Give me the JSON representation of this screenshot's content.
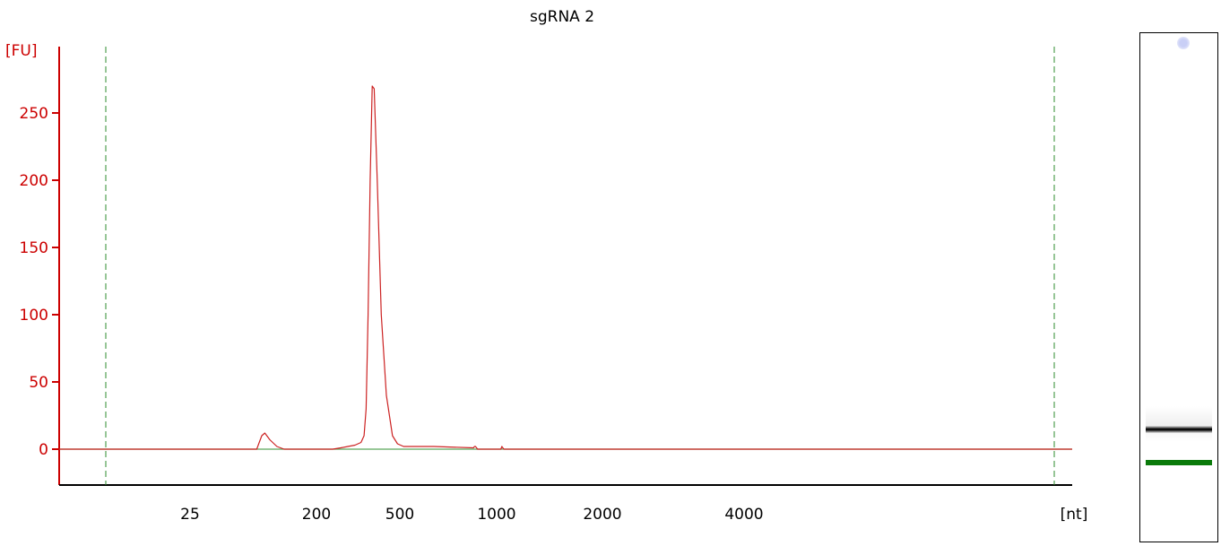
{
  "chart_data": {
    "type": "line",
    "title": "sgRNA 2",
    "ylabel": "[FU]",
    "xlabel": "[nt]",
    "y_ticks": [
      0,
      50,
      100,
      150,
      200,
      250
    ],
    "ylim": [
      -27,
      300
    ],
    "x_ticks": [
      "25",
      "200",
      "500",
      "1000",
      "2000",
      "4000"
    ],
    "grid": false,
    "colors": {
      "y_axis": "#cc0000",
      "trace": "#cc2222",
      "baseline": "#5aa85a",
      "marker_lines": "#2e8b2e",
      "ladder_band": "#0a7a0a",
      "sample_band": "#000000",
      "marker_dot": "#c9cff6"
    },
    "series": [
      {
        "x_time": [
          0,
          19.5,
          19.7,
          20.0,
          20.3,
          20.8,
          21.5,
          22.2,
          22.8,
          27,
          27.8,
          28.5,
          29.2,
          29.8,
          30.1,
          30.3,
          30.5,
          30.7,
          30.9,
          31.1,
          31.4,
          31.8,
          32.3,
          32.9,
          33.4,
          34,
          37,
          40.9,
          41.0,
          41.1,
          41.2,
          41.3,
          43.6,
          43.7,
          43.8,
          43.9,
          100
        ],
        "y": [
          0,
          0,
          4,
          10,
          12,
          7,
          2,
          0,
          0,
          0,
          1,
          2,
          3,
          5,
          10,
          30,
          100,
          200,
          270,
          268,
          200,
          100,
          40,
          10,
          4,
          2,
          2,
          1,
          2,
          2,
          1,
          0,
          0,
          2,
          1,
          0,
          0
        ]
      }
    ],
    "lanes": {
      "sample_band": "dark band",
      "lower_marker_band": "green band",
      "upper_marker": "blue dot"
    }
  }
}
